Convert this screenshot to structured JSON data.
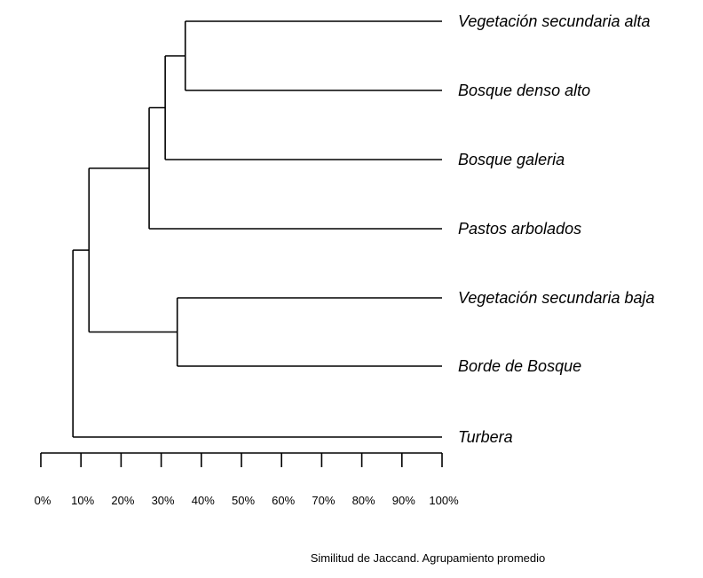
{
  "dendrogram": {
    "leaves": [
      "Vegetación secundaria alta",
      "Bosque denso alto",
      "Bosque galeria",
      "Pastos arbolados",
      "Vegetación secundaria baja",
      "Borde de Bosque",
      "Turbera"
    ],
    "merges": [
      {
        "a": "Vegetación secundaria alta",
        "b": "Bosque denso alto",
        "similarity": 36
      },
      {
        "a": "Vegetación secundaria alta|Bosque denso alto",
        "b": "Bosque galeria",
        "similarity": 31
      },
      {
        "a": "Vegetación secundaria alta|Bosque denso alto|Bosque galeria",
        "b": "Pastos arbolados",
        "similarity": 27
      },
      {
        "a": "Vegetación secundaria baja",
        "b": "Borde de Bosque",
        "similarity": 34
      },
      {
        "a": "Vegetación secundaria alta|Bosque denso alto|Bosque galeria|Pastos arbolados",
        "b": "Vegetación secundaria baja|Borde de Bosque",
        "similarity": 12
      },
      {
        "a": "all-but-turbera",
        "b": "Turbera",
        "similarity": 8
      }
    ]
  },
  "axis": {
    "ticks": [
      0,
      10,
      20,
      30,
      40,
      50,
      60,
      70,
      80,
      90,
      100
    ],
    "tick_labels": [
      "0%",
      "10%",
      "20%",
      "30%",
      "40%",
      "50%",
      "60%",
      "70%",
      "80%",
      "90%",
      "100%"
    ],
    "range": [
      0,
      100
    ]
  },
  "caption": "Similitud de Jaccand. Agrupamiento promedio"
}
